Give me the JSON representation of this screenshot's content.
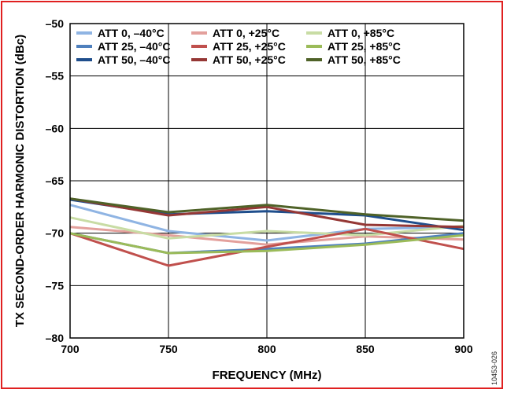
{
  "figure_id": "10453-026",
  "colors": {
    "frame": "#e02020",
    "grid": "#000000"
  },
  "chart_data": {
    "type": "line",
    "title": "",
    "xlabel": "FREQUENCY (MHz)",
    "ylabel": "TX SECOND-ORDER HARMONIC DISTORTION (dBc)",
    "xlim": [
      700,
      900
    ],
    "ylim": [
      -80,
      -50
    ],
    "x_ticks": [
      700,
      750,
      800,
      850,
      900
    ],
    "y_ticks": [
      -50,
      -55,
      -60,
      -65,
      -70,
      -75,
      -80
    ],
    "y_tick_labels": [
      "–50",
      "–55",
      "–60",
      "–65",
      "–70",
      "–75",
      "–80"
    ],
    "grid": true,
    "legend_position": "top-left",
    "x": [
      700,
      750,
      800,
      850,
      900
    ],
    "series": [
      {
        "name": "ATT 0, –40°C",
        "color": "#8fb4e3",
        "values": [
          -67.3,
          -69.8,
          -70.7,
          -69.6,
          -69.4
        ]
      },
      {
        "name": "ATT 0, +25°C",
        "color": "#e3a09c",
        "values": [
          -69.4,
          -70.2,
          -71.1,
          -70.3,
          -70.6
        ]
      },
      {
        "name": "ATT 0, +85°C",
        "color": "#c8dca4",
        "values": [
          -68.5,
          -70.5,
          -69.8,
          -70.2,
          -69.3
        ]
      },
      {
        "name": "ATT 25, –40°C",
        "color": "#4f80bd",
        "values": [
          -70.0,
          -71.9,
          -71.5,
          -71.0,
          -70.0
        ]
      },
      {
        "name": "ATT 25, +25°C",
        "color": "#c0504d",
        "values": [
          -70.0,
          -73.1,
          -71.3,
          -69.6,
          -71.5
        ]
      },
      {
        "name": "ATT 25, +85°C",
        "color": "#9bbb59",
        "values": [
          -70.0,
          -71.9,
          -71.7,
          -71.1,
          -70.2
        ]
      },
      {
        "name": "ATT 50, –40°C",
        "color": "#1f4e8c",
        "values": [
          -66.8,
          -68.2,
          -67.9,
          -68.3,
          -69.7
        ]
      },
      {
        "name": "ATT 50, +25°C",
        "color": "#953735",
        "values": [
          -66.7,
          -68.3,
          -67.5,
          -69.2,
          -69.4
        ]
      },
      {
        "name": "ATT 50, +85°C",
        "color": "#4f6228",
        "values": [
          -66.7,
          -68.0,
          -67.3,
          -68.2,
          -68.8
        ]
      }
    ]
  }
}
